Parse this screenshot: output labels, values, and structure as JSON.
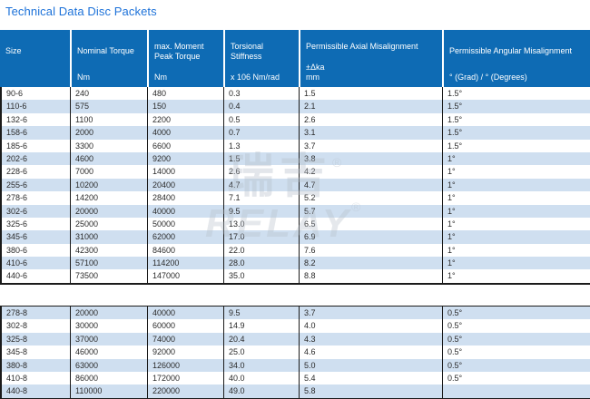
{
  "page": {
    "title": "Technical Data Disc Packets"
  },
  "colors": {
    "header_bg": "#0e6bb4",
    "row_alt_bg": "#cfdff0",
    "title_text": "#1d72d9",
    "border": "#1b1b1b",
    "watermark": "#b7c0cb"
  },
  "watermark": {
    "cjk": "瑞吉",
    "cjk_reg": "®",
    "latin": "RELAY",
    "latin_reg": "®"
  },
  "table": {
    "columns": [
      {
        "label": "Size",
        "unit": ""
      },
      {
        "label": "Nominal Torque",
        "unit": "Nm"
      },
      {
        "label": "max. Moment\nPeak Torque",
        "unit": "Nm"
      },
      {
        "label": "Torsional Stiffness",
        "unit": "x 106 Nm/rad"
      },
      {
        "label": "Permissible Axial Misalignment",
        "unit": "±Δka\nmm"
      },
      {
        "label": "Permissible Angular Misalignment",
        "unit": "° (Grad) / ° (Degrees)"
      }
    ],
    "rows_6": [
      [
        "90-6",
        "240",
        "480",
        "0.3",
        "1.5",
        "1.5°"
      ],
      [
        "110-6",
        "575",
        "150",
        "0.4",
        "2.1",
        "1.5°"
      ],
      [
        "132-6",
        "1100",
        "2200",
        "0.5",
        "2.6",
        "1.5°"
      ],
      [
        "158-6",
        "2000",
        "4000",
        "0.7",
        "3.1",
        "1.5°"
      ],
      [
        "185-6",
        "3300",
        "6600",
        "1.3",
        "3.7",
        "1.5°"
      ],
      [
        "202-6",
        "4600",
        "9200",
        "1.5",
        "3.8",
        "1°"
      ],
      [
        "228-6",
        "7000",
        "14000",
        "2.6",
        "4.2",
        "1°"
      ],
      [
        "255-6",
        "10200",
        "20400",
        "4.7",
        "4.7",
        "1°"
      ],
      [
        "278-6",
        "14200",
        "28400",
        "7.1",
        "5.2",
        "1°"
      ],
      [
        "302-6",
        "20000",
        "40000",
        "9.5",
        "5.7",
        "1°"
      ],
      [
        "325-6",
        "25000",
        "50000",
        "13.0",
        "6.5",
        "1°"
      ],
      [
        "345-6",
        "31000",
        "62000",
        "17.0",
        "6.9",
        "1°"
      ],
      [
        "380-6",
        "42300",
        "84600",
        "22.0",
        "7.6",
        "1°"
      ],
      [
        "410-6",
        "57100",
        "114200",
        "28.0",
        "8.2",
        "1°"
      ],
      [
        "440-6",
        "73500",
        "147000",
        "35.0",
        "8.8",
        "1°"
      ]
    ],
    "rows_8": [
      [
        "278-8",
        "20000",
        "40000",
        "9.5",
        "3.7",
        "0.5°"
      ],
      [
        "302-8",
        "30000",
        "60000",
        "14.9",
        "4.0",
        "0.5°"
      ],
      [
        "325-8",
        "37000",
        "74000",
        "20.4",
        "4.3",
        "0.5°"
      ],
      [
        "345-8",
        "46000",
        "92000",
        "25.0",
        "4.6",
        "0.5°"
      ],
      [
        "380-8",
        "63000",
        "126000",
        "34.0",
        "5.0",
        "0.5°"
      ],
      [
        "410-8",
        "86000",
        "172000",
        "40.0",
        "5.4",
        "0.5°"
      ],
      [
        "440-8",
        "110000",
        "220000",
        "49.0",
        "5.8",
        ""
      ]
    ]
  }
}
